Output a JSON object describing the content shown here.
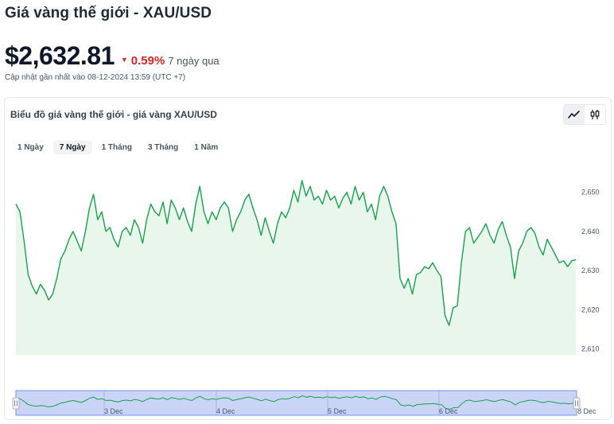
{
  "page": {
    "title": "Giá vàng thế giới - XAU/USD",
    "price": "$2,632.81",
    "change_pct": "0.59%",
    "change_period": "7 ngày qua",
    "updated": "Cập nhật gần nhất vào 08-12-2024 13:59 (UTC +7)"
  },
  "card": {
    "title": "Biểu đồ giá vàng thế giới - giá vàng XAU/USD",
    "chart_type_buttons": [
      {
        "icon": "line-chart-icon",
        "active": true
      },
      {
        "icon": "candlestick-icon",
        "active": false
      }
    ],
    "range_tabs": [
      {
        "label": "1 Ngày",
        "selected": false
      },
      {
        "label": "7 Ngày",
        "selected": true
      },
      {
        "label": "1 Tháng",
        "selected": false
      },
      {
        "label": "3 Tháng",
        "selected": false
      },
      {
        "label": "1 Năm",
        "selected": false
      }
    ]
  },
  "colors": {
    "line": "#16a34a",
    "area": "#e8f6ec",
    "down": "#dc2626",
    "navigator_fill": "#c9d4f7",
    "navigator_border": "#7c93e8"
  },
  "chart_data": {
    "type": "line",
    "title": "",
    "xlabel": "",
    "ylabel": "",
    "ylim": [
      2608.5,
      2654
    ],
    "y_ticks": [
      2610,
      2620,
      2630,
      2640,
      2650
    ],
    "y_tick_labels": [
      "2,610",
      "2,620",
      "2,630",
      "2,640",
      "2,650"
    ],
    "grid": false,
    "legend": "none",
    "navigator_ticks": [
      "3 Dec",
      "4 Dec",
      "5 Dec",
      "6 Dec",
      "8 Dec"
    ],
    "series": [
      {
        "values": [
          2647.0,
          2645.0,
          2637.5,
          2629.0,
          2626.0,
          2624.0,
          2626.5,
          2625.0,
          2622.5,
          2624.0,
          2628.0,
          2633.0,
          2635.0,
          2638.0,
          2640.0,
          2637.5,
          2635.0,
          2640.0,
          2646.0,
          2649.5,
          2643.0,
          2645.0,
          2640.0,
          2641.0,
          2638.0,
          2636.0,
          2640.0,
          2641.0,
          2639.0,
          2643.0,
          2641.0,
          2637.0,
          2643.0,
          2647.0,
          2645.0,
          2644.0,
          2647.5,
          2642.0,
          2648.0,
          2646.0,
          2643.0,
          2646.0,
          2642.5,
          2640.0,
          2647.0,
          2651.5,
          2645.0,
          2642.0,
          2645.0,
          2643.0,
          2646.0,
          2647.5,
          2646.0,
          2640.0,
          2643.0,
          2645.0,
          2648.0,
          2649.5,
          2646.0,
          2643.0,
          2639.0,
          2643.5,
          2640.0,
          2637.0,
          2642.0,
          2645.0,
          2643.5,
          2646.0,
          2650.5,
          2647.5,
          2653.0,
          2649.0,
          2651.5,
          2648.0,
          2649.0,
          2647.0,
          2650.5,
          2648.0,
          2649.0,
          2646.0,
          2648.5,
          2650.0,
          2647.0,
          2651.5,
          2648.0,
          2650.0,
          2645.0,
          2647.0,
          2643.0,
          2649.0,
          2651.5,
          2649.0,
          2645.0,
          2642.0,
          2628.0,
          2625.5,
          2628.0,
          2624.0,
          2629.0,
          2629.5,
          2631.0,
          2630.5,
          2632.0,
          2630.0,
          2628.5,
          2618.5,
          2616.0,
          2620.5,
          2621.0,
          2632.0,
          2640.0,
          2641.0,
          2637.0,
          2638.5,
          2640.0,
          2642.0,
          2639.0,
          2637.0,
          2640.5,
          2642.5,
          2639.0,
          2636.0,
          2628.0,
          2635.0,
          2637.0,
          2640.0,
          2641.0,
          2639.5,
          2636.0,
          2634.0,
          2638.0,
          2636.0,
          2634.0,
          2632.0,
          2632.5,
          2631.0,
          2632.5,
          2632.8
        ]
      }
    ]
  }
}
